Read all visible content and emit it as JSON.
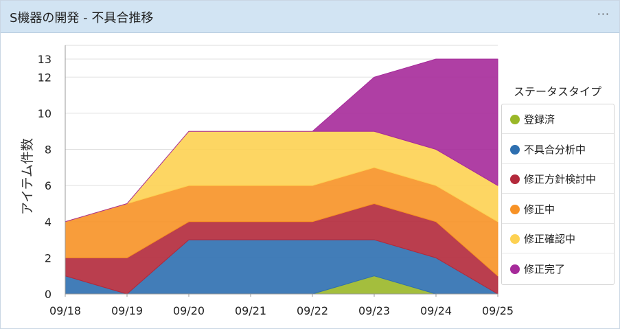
{
  "header": {
    "title": "S機器の開発 - 不具合推移",
    "menu_label": "···"
  },
  "chart_data": {
    "type": "area",
    "stacked": true,
    "categories": [
      "09/18",
      "09/19",
      "09/20",
      "09/21",
      "09/22",
      "09/23",
      "09/24",
      "09/25"
    ],
    "ylabel": "アイテム件数",
    "xlabel": "",
    "ylim": [
      0,
      13
    ],
    "yticks": [
      0,
      2,
      4,
      6,
      8,
      10,
      12,
      13
    ],
    "grid": true,
    "legend_title": "ステータスタイプ",
    "legend_position": "right",
    "series": [
      {
        "name": "登録済",
        "color": "#9ab728",
        "values": [
          0,
          0,
          0,
          0,
          0,
          1,
          0,
          0
        ]
      },
      {
        "name": "不具合分析中",
        "color": "#2e6fb0",
        "values": [
          1,
          0,
          3,
          3,
          3,
          2,
          2,
          0
        ]
      },
      {
        "name": "修正方針検討中",
        "color": "#b3293b",
        "values": [
          1,
          2,
          1,
          1,
          1,
          2,
          2,
          1
        ]
      },
      {
        "name": "修正中",
        "color": "#f79226",
        "values": [
          2,
          3,
          2,
          2,
          2,
          2,
          2,
          3
        ]
      },
      {
        "name": "修正確認中",
        "color": "#fdd152",
        "values": [
          0,
          0,
          3,
          3,
          3,
          2,
          2,
          2
        ]
      },
      {
        "name": "修正完了",
        "color": "#a62a9a",
        "values": [
          0,
          0,
          0,
          0,
          0,
          3,
          5,
          7
        ]
      }
    ]
  }
}
